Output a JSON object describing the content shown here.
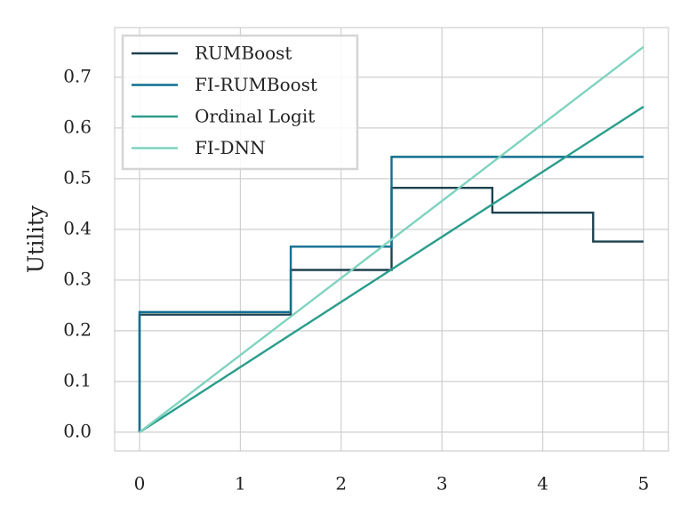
{
  "chart_data": {
    "type": "line",
    "ylabel": "Utility",
    "xlim": [
      -0.247,
      5.247
    ],
    "ylim": [
      -0.037,
      0.798
    ],
    "xticks": [
      0,
      1,
      2,
      3,
      4,
      5
    ],
    "yticks": [
      {
        "value": 0,
        "label": "0.0"
      },
      0.1,
      0.2,
      0.3,
      0.4,
      0.5,
      0.6,
      0.7
    ],
    "grid": true,
    "legend": "upper-left",
    "series": [
      {
        "name": "RUMBoost",
        "color": "#1e4150",
        "x": [
          0,
          0,
          1.5,
          1.5,
          2.5,
          2.5,
          3.5,
          3.5,
          4.5,
          4.5,
          5
        ],
        "values": [
          0,
          0.232,
          0.232,
          0.32,
          0.32,
          0.482,
          0.482,
          0.433,
          0.433,
          0.376,
          0.376
        ]
      },
      {
        "name": "FI-RUMBoost",
        "color": "#0f6f8f",
        "x": [
          0,
          0,
          1.5,
          1.5,
          2.5,
          2.5,
          5
        ],
        "values": [
          0,
          0.237,
          0.237,
          0.366,
          0.366,
          0.543,
          0.543
        ]
      },
      {
        "name": "Ordinal Logit",
        "color": "#2a9d8c",
        "x": [
          0,
          5
        ],
        "values": [
          0,
          0.642
        ]
      },
      {
        "name": "FI-DNN",
        "color": "#7fd3bf",
        "x": [
          0,
          5
        ],
        "values": [
          0,
          0.76
        ]
      }
    ]
  }
}
